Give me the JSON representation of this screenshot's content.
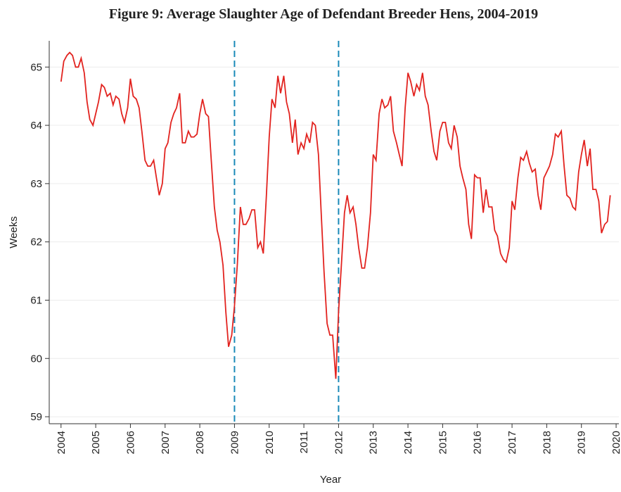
{
  "chart_data": {
    "type": "line",
    "title": "Figure 9: Average Slaughter Age of Defendant Breeder Hens, 2004-2019",
    "x_label": "Year",
    "y_label": "Weeks",
    "x": [
      2004,
      2004.08,
      2004.17,
      2004.25,
      2004.33,
      2004.42,
      2004.5,
      2004.58,
      2004.67,
      2004.75,
      2004.83,
      2004.92,
      2005,
      2005.08,
      2005.17,
      2005.25,
      2005.33,
      2005.42,
      2005.5,
      2005.58,
      2005.67,
      2005.75,
      2005.83,
      2005.92,
      2006,
      2006.08,
      2006.17,
      2006.25,
      2006.33,
      2006.42,
      2006.5,
      2006.58,
      2006.67,
      2006.75,
      2006.83,
      2006.92,
      2007,
      2007.08,
      2007.17,
      2007.25,
      2007.33,
      2007.42,
      2007.5,
      2007.58,
      2007.67,
      2007.75,
      2007.83,
      2007.92,
      2008,
      2008.08,
      2008.17,
      2008.25,
      2008.33,
      2008.42,
      2008.5,
      2008.58,
      2008.67,
      2008.75,
      2008.83,
      2008.92,
      2009,
      2009.08,
      2009.17,
      2009.25,
      2009.33,
      2009.42,
      2009.5,
      2009.58,
      2009.67,
      2009.75,
      2009.83,
      2009.92,
      2010,
      2010.08,
      2010.17,
      2010.25,
      2010.33,
      2010.42,
      2010.5,
      2010.58,
      2010.67,
      2010.75,
      2010.83,
      2010.92,
      2011,
      2011.08,
      2011.17,
      2011.25,
      2011.33,
      2011.42,
      2011.5,
      2011.58,
      2011.67,
      2011.75,
      2011.83,
      2011.92,
      2012,
      2012.08,
      2012.17,
      2012.25,
      2012.33,
      2012.42,
      2012.5,
      2012.58,
      2012.67,
      2012.75,
      2012.83,
      2012.92,
      2013,
      2013.08,
      2013.17,
      2013.25,
      2013.33,
      2013.42,
      2013.5,
      2013.58,
      2013.67,
      2013.75,
      2013.83,
      2013.92,
      2014,
      2014.08,
      2014.17,
      2014.25,
      2014.33,
      2014.42,
      2014.5,
      2014.58,
      2014.67,
      2014.75,
      2014.83,
      2014.92,
      2015,
      2015.08,
      2015.17,
      2015.25,
      2015.33,
      2015.42,
      2015.5,
      2015.58,
      2015.67,
      2015.75,
      2015.83,
      2015.92,
      2016,
      2016.08,
      2016.17,
      2016.25,
      2016.33,
      2016.42,
      2016.5,
      2016.58,
      2016.67,
      2016.75,
      2016.83,
      2016.92,
      2017,
      2017.08,
      2017.17,
      2017.25,
      2017.33,
      2017.42,
      2017.5,
      2017.58,
      2017.67,
      2017.75,
      2017.83,
      2017.92,
      2018,
      2018.08,
      2018.17,
      2018.25,
      2018.33,
      2018.42,
      2018.5,
      2018.58,
      2018.67,
      2018.75,
      2018.83,
      2018.92,
      2019,
      2019.08,
      2019.17,
      2019.25,
      2019.33,
      2019.42,
      2019.5,
      2019.58,
      2019.67,
      2019.75,
      2019.83
    ],
    "series": [
      {
        "color": "#e2231f",
        "values": [
          64.75,
          65.1,
          65.2,
          65.25,
          65.2,
          65.0,
          65.0,
          65.15,
          64.9,
          64.4,
          64.1,
          64.0,
          64.2,
          64.4,
          64.7,
          64.65,
          64.5,
          64.55,
          64.35,
          64.5,
          64.45,
          64.2,
          64.05,
          64.3,
          64.8,
          64.5,
          64.45,
          64.3,
          63.9,
          63.4,
          63.3,
          63.3,
          63.4,
          63.1,
          62.8,
          63.0,
          63.6,
          63.7,
          64.05,
          64.2,
          64.3,
          64.55,
          63.7,
          63.7,
          63.9,
          63.8,
          63.8,
          63.85,
          64.2,
          64.45,
          64.2,
          64.15,
          63.4,
          62.6,
          62.2,
          62.0,
          61.6,
          60.8,
          60.2,
          60.4,
          60.9,
          61.6,
          62.6,
          62.3,
          62.3,
          62.4,
          62.55,
          62.55,
          61.9,
          62.0,
          61.8,
          62.8,
          63.8,
          64.45,
          64.3,
          64.85,
          64.55,
          64.85,
          64.4,
          64.2,
          63.7,
          64.1,
          63.5,
          63.7,
          63.6,
          63.85,
          63.7,
          64.05,
          64.0,
          63.5,
          62.5,
          61.5,
          60.6,
          60.4,
          60.4,
          59.65,
          60.8,
          61.6,
          62.5,
          62.8,
          62.5,
          62.6,
          62.3,
          61.9,
          61.55,
          61.55,
          61.9,
          62.5,
          63.5,
          63.4,
          64.2,
          64.45,
          64.3,
          64.35,
          64.5,
          63.9,
          63.7,
          63.5,
          63.3,
          64.3,
          64.9,
          64.75,
          64.5,
          64.7,
          64.6,
          64.9,
          64.5,
          64.35,
          63.9,
          63.55,
          63.4,
          63.9,
          64.05,
          64.05,
          63.7,
          63.6,
          64.0,
          63.8,
          63.3,
          63.1,
          62.9,
          62.3,
          62.05,
          63.15,
          63.1,
          63.1,
          62.5,
          62.9,
          62.6,
          62.6,
          62.2,
          62.1,
          61.8,
          61.7,
          61.65,
          61.9,
          62.7,
          62.55,
          63.1,
          63.45,
          63.4,
          63.55,
          63.35,
          63.2,
          63.25,
          62.8,
          62.55,
          63.1,
          63.2,
          63.3,
          63.5,
          63.85,
          63.8,
          63.9,
          63.3,
          62.8,
          62.75,
          62.6,
          62.55,
          63.2,
          63.5,
          63.75,
          63.3,
          63.6,
          62.9,
          62.9,
          62.7,
          62.15,
          62.3,
          62.35,
          62.8
        ]
      }
    ],
    "vlines": [
      2009,
      2012
    ],
    "vline_color": "#1a8ab8",
    "xlim": [
      2003.66,
      2020.08
    ],
    "xticks": [
      2004,
      2005,
      2006,
      2007,
      2008,
      2009,
      2010,
      2011,
      2012,
      2013,
      2014,
      2015,
      2016,
      2017,
      2018,
      2019,
      2020
    ],
    "ylim": [
      58.88,
      65.45
    ],
    "yticks": [
      59,
      60,
      61,
      62,
      63,
      64,
      65
    ],
    "grid": true
  }
}
